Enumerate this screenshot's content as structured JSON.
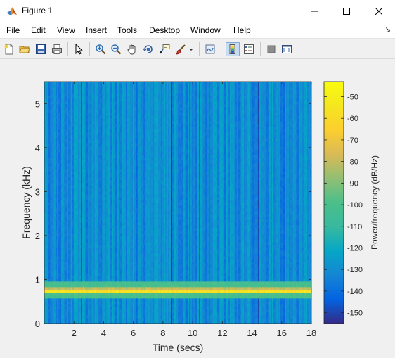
{
  "window": {
    "title": "Figure 1",
    "icon": "matlab-logo-icon",
    "controls": [
      "minimize-icon",
      "maximize-icon",
      "close-icon"
    ]
  },
  "menu": {
    "items": [
      "File",
      "Edit",
      "View",
      "Insert",
      "Tools",
      "Desktop",
      "Window",
      "Help"
    ],
    "dock_arrow": "↘"
  },
  "toolbar": {
    "buttons": [
      "new-figure-icon",
      "open-file-icon",
      "save-icon",
      "print-icon",
      "edit-plot-arrow-icon",
      "zoom-in-icon",
      "zoom-out-icon",
      "pan-hand-icon",
      "rotate-3d-icon",
      "data-cursor-icon",
      "brush-icon",
      "link-plot-icon",
      "colorbar-icon",
      "legend-icon",
      "hide-plot-tools-icon",
      "show-plot-tools-icon"
    ],
    "active": [
      "colorbar-icon"
    ]
  },
  "chart_data": {
    "type": "heatmap",
    "title": "",
    "xlabel": "Time (secs)",
    "ylabel": "Frequency (kHz)",
    "xlim": [
      0,
      18
    ],
    "ylim": [
      0,
      5.5
    ],
    "xticks": [
      2,
      4,
      6,
      8,
      10,
      12,
      14,
      16,
      18
    ],
    "yticks": [
      0,
      1,
      2,
      3,
      4,
      5
    ],
    "colorbar": {
      "label": "Power/frequency (dB/Hz)",
      "range": [
        -155,
        -43
      ],
      "ticks": [
        -50,
        -60,
        -70,
        -80,
        -90,
        -100,
        -110,
        -120,
        -130,
        -140,
        -150
      ],
      "colormap": "parula"
    },
    "features": {
      "tone_band_khz": 0.75,
      "tone_band_power_db": -50,
      "background_power_db": -130
    }
  }
}
